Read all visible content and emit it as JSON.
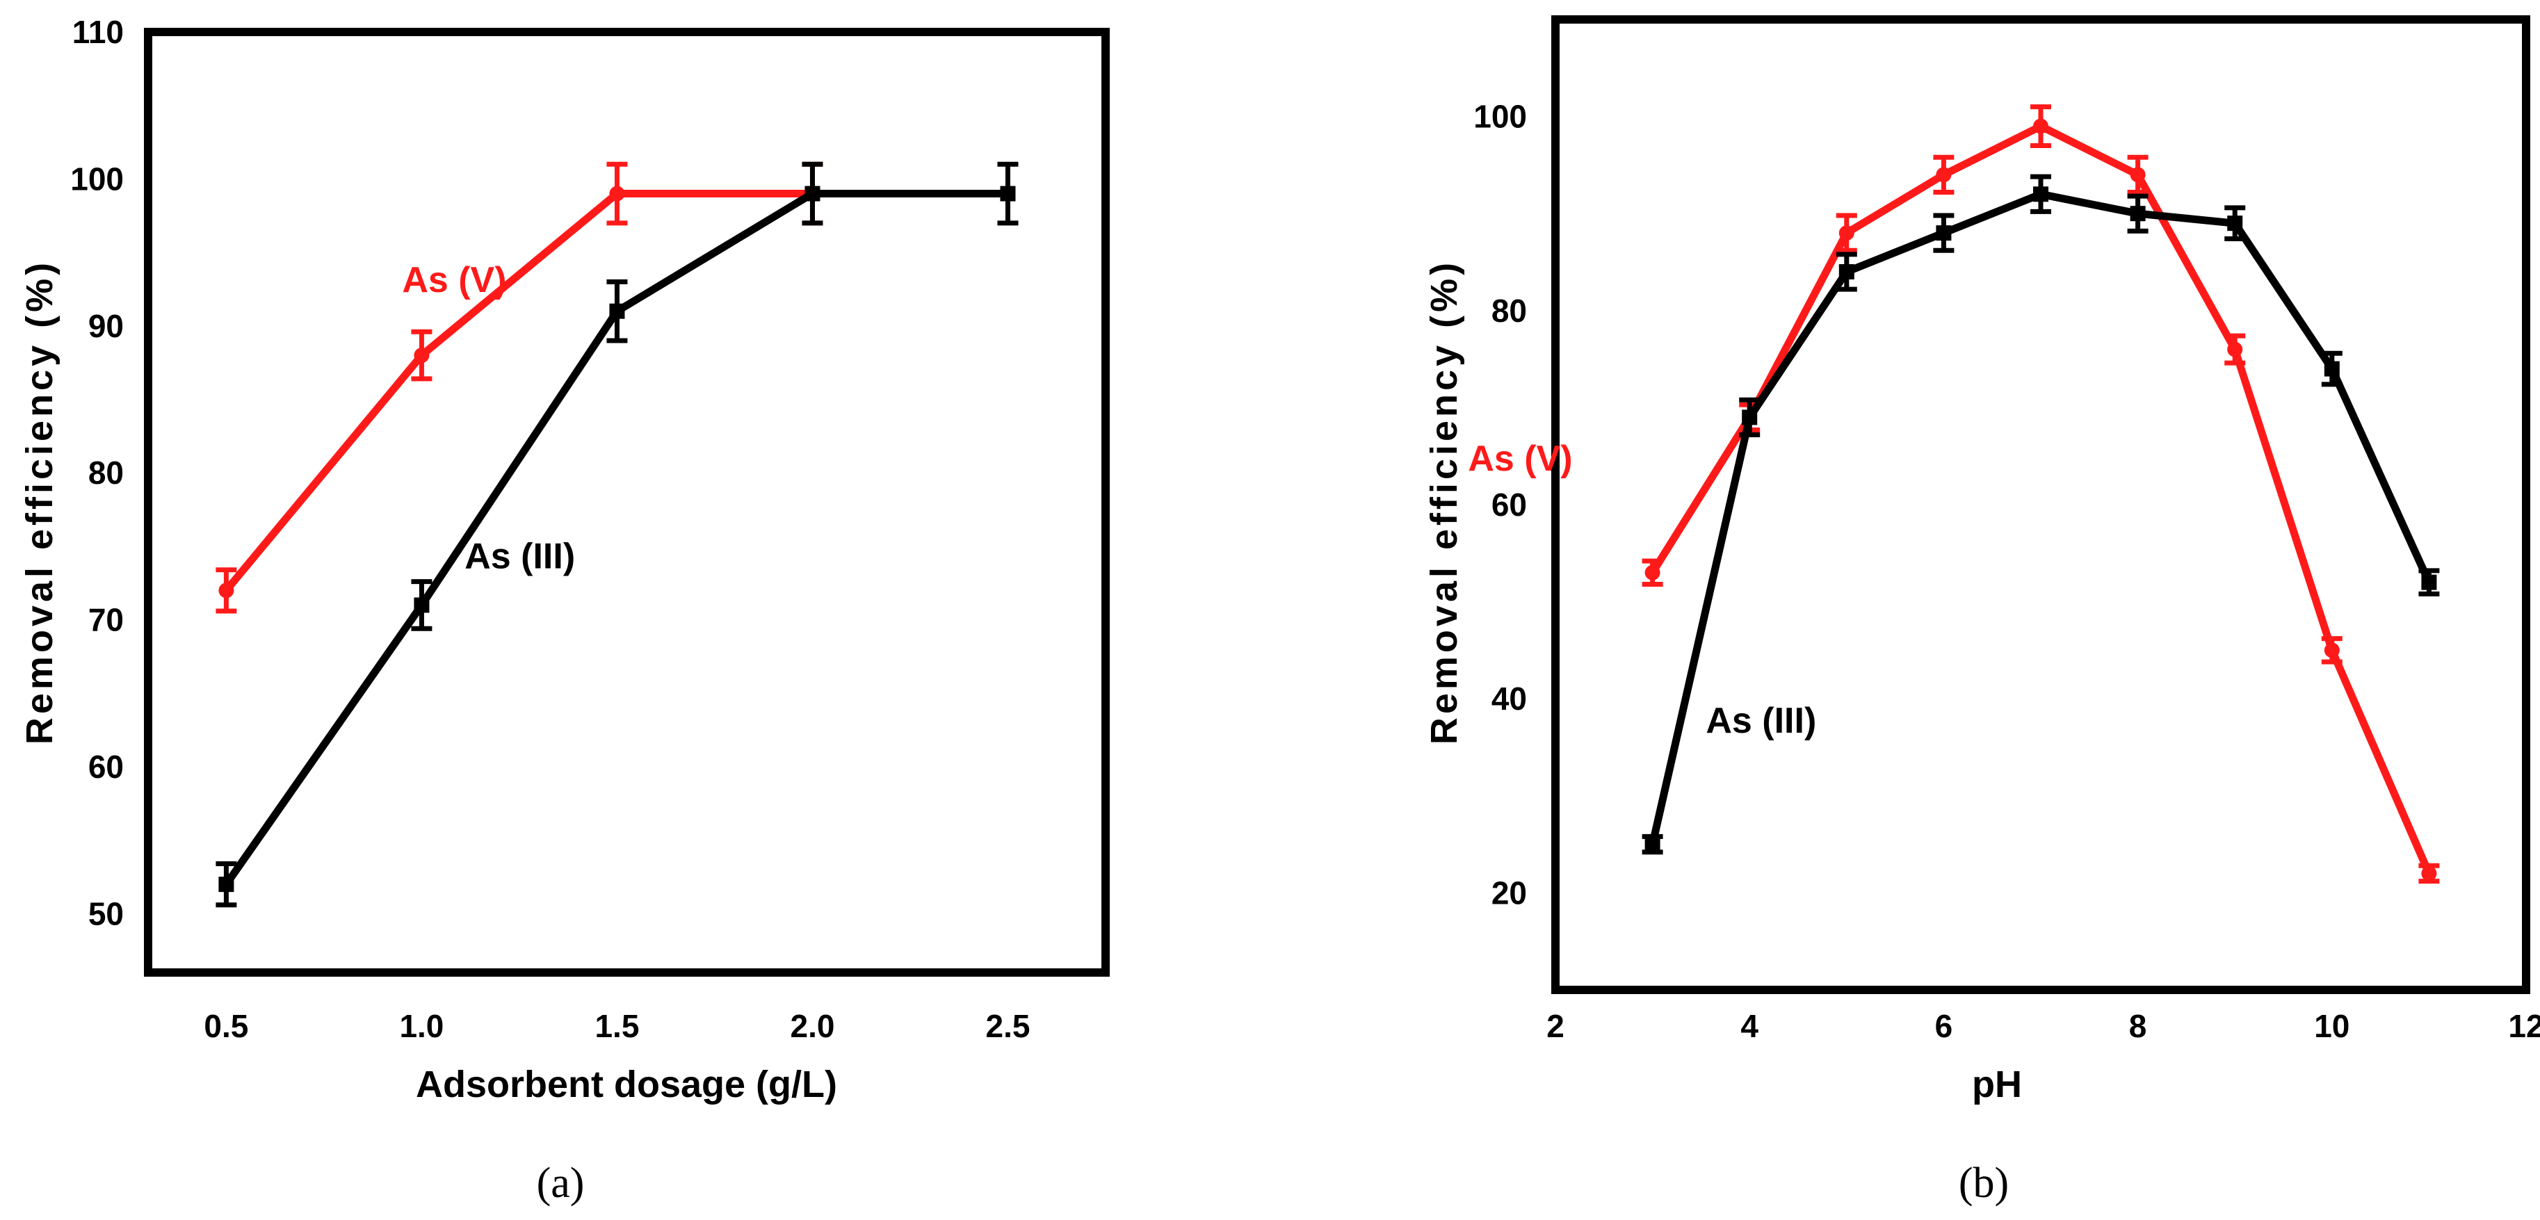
{
  "chart_data": [
    {
      "type": "line",
      "panel_label": "(a)",
      "title": "",
      "xlabel": "Adsorbent dosage (g/L)",
      "ylabel": "Removal efficiency (%)",
      "xlim": [
        0.3,
        2.75
      ],
      "ylim": [
        46,
        110
      ],
      "xticks": [
        "0.5",
        "1.0",
        "1.5",
        "2.0",
        "2.5"
      ],
      "xtick_values": [
        0.5,
        1.0,
        1.5,
        2.0,
        2.5
      ],
      "yticks": [
        "50",
        "60",
        "70",
        "80",
        "90",
        "100",
        "110"
      ],
      "ytick_values": [
        50,
        60,
        70,
        80,
        90,
        100,
        110
      ],
      "series": [
        {
          "name": "As (V)",
          "color": "#ff1a1a",
          "marker": "circle",
          "x": [
            0.5,
            1.0,
            1.5,
            2.0
          ],
          "y": [
            72,
            88,
            99,
            99
          ],
          "err": [
            1.4,
            1.6,
            2.0,
            2.0
          ],
          "label": {
            "text": "As (V)",
            "x": 0.95,
            "y": 92.3
          }
        },
        {
          "name": "As (III)",
          "color": "#000000",
          "marker": "square",
          "x": [
            0.5,
            1.0,
            1.5,
            2.0,
            2.5
          ],
          "y": [
            52,
            71,
            91,
            99,
            99
          ],
          "err": [
            1.4,
            1.6,
            2.0,
            2.0,
            2.0
          ],
          "label": {
            "text": "As (III)",
            "x": 1.11,
            "y": 73.5
          }
        }
      ]
    },
    {
      "type": "line",
      "panel_label": "(b)",
      "title": "",
      "xlabel": "pH",
      "ylabel": "Removal efficiency (%)",
      "xlim": [
        2,
        12
      ],
      "ylim": [
        10,
        110
      ],
      "xticks": [
        "2",
        "4",
        "6",
        "8",
        "10",
        "12"
      ],
      "xtick_values": [
        2,
        4,
        6,
        8,
        10,
        12
      ],
      "yticks": [
        "20",
        "40",
        "60",
        "80",
        "100"
      ],
      "ytick_values": [
        20,
        40,
        60,
        80,
        100
      ],
      "series": [
        {
          "name": "As (V)",
          "color": "#ff1a1a",
          "marker": "circle",
          "x": [
            3,
            4,
            5,
            6,
            7,
            8,
            9,
            10,
            11
          ],
          "y": [
            53,
            69,
            88,
            94,
            99,
            94,
            76,
            45,
            22
          ],
          "err": [
            1.2,
            1.3,
            1.8,
            1.8,
            2.0,
            1.8,
            1.4,
            1.2,
            0.8
          ],
          "label": {
            "text": "As (V)",
            "x": 1.1,
            "y": 63.5
          }
        },
        {
          "name": "As (III)",
          "color": "#000000",
          "marker": "square",
          "x": [
            3,
            4,
            5,
            6,
            7,
            8,
            9,
            10,
            11
          ],
          "y": [
            25,
            69,
            84,
            88,
            92,
            90,
            89,
            74,
            52
          ],
          "err": [
            0.8,
            1.8,
            1.8,
            1.8,
            1.8,
            1.8,
            1.6,
            1.6,
            1.2
          ],
          "label": {
            "text": "As (III)",
            "x": 3.55,
            "y": 36.5
          }
        }
      ]
    }
  ]
}
